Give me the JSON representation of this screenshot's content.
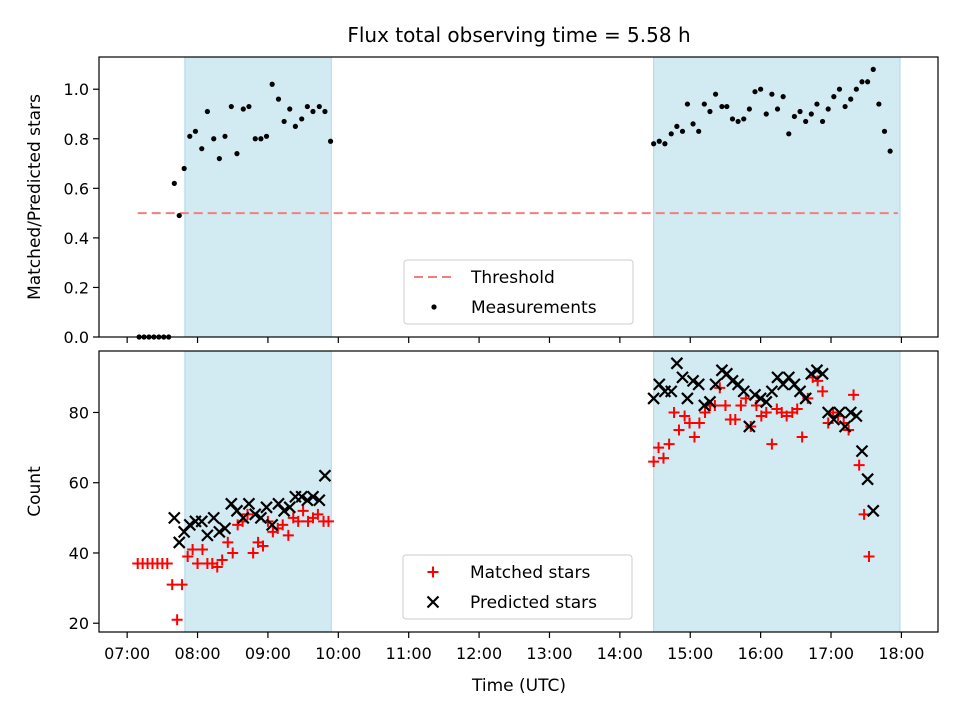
{
  "chart_data": {
    "title": "Flux total observing time = 5.58 h",
    "xlabel": "Time (UTC)",
    "x_ticks": [
      "07:00",
      "08:00",
      "09:00",
      "10:00",
      "11:00",
      "12:00",
      "13:00",
      "14:00",
      "15:00",
      "16:00",
      "17:00",
      "18:00"
    ],
    "x_tick_values": [
      7,
      8,
      9,
      10,
      11,
      12,
      13,
      14,
      15,
      16,
      17,
      18
    ],
    "xlim": [
      6.6,
      18.52
    ],
    "shaded_intervals": [
      [
        7.82,
        9.9
      ],
      [
        14.48,
        17.98
      ]
    ],
    "shade_color": "#add8e6",
    "panels": [
      {
        "type": "scatter",
        "ylabel": "Matched/Predicted stars",
        "ylim": [
          0,
          1.13
        ],
        "y_ticks": [
          "0.0",
          "0.2",
          "0.4",
          "0.6",
          "0.8",
          "1.0"
        ],
        "y_tick_values": [
          0,
          0.2,
          0.4,
          0.6,
          0.8,
          1.0
        ],
        "threshold": {
          "name": "Threshold",
          "value": 0.5,
          "x_range": [
            7.15,
            17.95
          ],
          "color": "#f08080"
        },
        "legend": {
          "position": "lower-center",
          "entries": [
            "Threshold",
            "Measurements"
          ]
        },
        "series": [
          {
            "name": "Measurements",
            "color": "#000000",
            "marker": "dot",
            "points": [
              [
                7.17,
                0.0
              ],
              [
                7.24,
                0.0
              ],
              [
                7.31,
                0.0
              ],
              [
                7.38,
                0.0
              ],
              [
                7.45,
                0.0
              ],
              [
                7.52,
                0.0
              ],
              [
                7.59,
                0.0
              ],
              [
                7.67,
                0.62
              ],
              [
                7.74,
                0.49
              ],
              [
                7.81,
                0.68
              ],
              [
                7.89,
                0.81
              ],
              [
                7.97,
                0.83
              ],
              [
                8.06,
                0.76
              ],
              [
                8.14,
                0.91
              ],
              [
                8.23,
                0.8
              ],
              [
                8.31,
                0.72
              ],
              [
                8.39,
                0.81
              ],
              [
                8.48,
                0.93
              ],
              [
                8.56,
                0.74
              ],
              [
                8.65,
                0.92
              ],
              [
                8.73,
                0.93
              ],
              [
                8.82,
                0.8
              ],
              [
                8.9,
                0.8
              ],
              [
                8.98,
                0.81
              ],
              [
                9.06,
                1.02
              ],
              [
                9.15,
                0.96
              ],
              [
                9.23,
                0.87
              ],
              [
                9.31,
                0.92
              ],
              [
                9.39,
                0.85
              ],
              [
                9.48,
                0.88
              ],
              [
                9.56,
                0.93
              ],
              [
                9.64,
                0.91
              ],
              [
                9.73,
                0.93
              ],
              [
                9.81,
                0.91
              ],
              [
                9.89,
                0.79
              ],
              [
                14.48,
                0.78
              ],
              [
                14.56,
                0.79
              ],
              [
                14.64,
                0.78
              ],
              [
                14.73,
                0.82
              ],
              [
                14.81,
                0.85
              ],
              [
                14.89,
                0.83
              ],
              [
                14.96,
                0.94
              ],
              [
                15.04,
                0.86
              ],
              [
                15.12,
                0.83
              ],
              [
                15.2,
                0.94
              ],
              [
                15.28,
                0.91
              ],
              [
                15.36,
                0.98
              ],
              [
                15.45,
                0.93
              ],
              [
                15.52,
                0.93
              ],
              [
                15.6,
                0.88
              ],
              [
                15.68,
                0.87
              ],
              [
                15.76,
                0.88
              ],
              [
                15.84,
                0.92
              ],
              [
                15.92,
                0.99
              ],
              [
                16.0,
                1.0
              ],
              [
                16.08,
                0.9
              ],
              [
                16.16,
                0.98
              ],
              [
                16.24,
                0.92
              ],
              [
                16.32,
                0.97
              ],
              [
                16.4,
                0.82
              ],
              [
                16.48,
                0.89
              ],
              [
                16.56,
                0.91
              ],
              [
                16.64,
                0.87
              ],
              [
                16.72,
                0.9
              ],
              [
                16.8,
                0.94
              ],
              [
                16.88,
                0.87
              ],
              [
                16.96,
                0.92
              ],
              [
                17.04,
                0.97
              ],
              [
                17.12,
                1.0
              ],
              [
                17.2,
                0.93
              ],
              [
                17.28,
                0.96
              ],
              [
                17.36,
                1.0
              ],
              [
                17.44,
                1.03
              ],
              [
                17.52,
                1.03
              ],
              [
                17.6,
                1.08
              ],
              [
                17.68,
                0.94
              ],
              [
                17.76,
                0.83
              ],
              [
                17.84,
                0.75
              ]
            ]
          }
        ]
      },
      {
        "type": "scatter",
        "ylabel": "Count",
        "ylim": [
          17.5,
          97.5
        ],
        "y_ticks": [
          "20",
          "40",
          "60",
          "80"
        ],
        "y_tick_values": [
          20,
          40,
          60,
          80
        ],
        "legend": {
          "position": "lower-center",
          "entries": [
            "Matched stars",
            "Predicted stars"
          ]
        },
        "series": [
          {
            "name": "Matched stars",
            "color": "#ff0000",
            "marker": "plus",
            "points": [
              [
                7.15,
                37
              ],
              [
                7.22,
                37
              ],
              [
                7.29,
                37
              ],
              [
                7.36,
                37
              ],
              [
                7.43,
                37
              ],
              [
                7.5,
                37
              ],
              [
                7.57,
                37
              ],
              [
                7.64,
                31
              ],
              [
                7.71,
                21
              ],
              [
                7.78,
                31
              ],
              [
                7.86,
                39
              ],
              [
                7.93,
                41
              ],
              [
                8.0,
                37
              ],
              [
                8.07,
                41
              ],
              [
                8.14,
                37
              ],
              [
                8.21,
                37
              ],
              [
                8.28,
                36
              ],
              [
                8.35,
                38
              ],
              [
                8.43,
                43
              ],
              [
                8.5,
                40
              ],
              [
                8.57,
                48
              ],
              [
                8.64,
                49
              ],
              [
                8.71,
                51
              ],
              [
                8.79,
                40
              ],
              [
                8.86,
                43
              ],
              [
                8.93,
                42
              ],
              [
                9.0,
                49
              ],
              [
                9.07,
                46
              ],
              [
                9.14,
                47
              ],
              [
                9.21,
                48
              ],
              [
                9.29,
                45
              ],
              [
                9.36,
                50
              ],
              [
                9.43,
                49
              ],
              [
                9.5,
                52
              ],
              [
                9.57,
                49
              ],
              [
                9.64,
                50
              ],
              [
                9.71,
                51
              ],
              [
                9.79,
                49
              ],
              [
                9.86,
                49
              ],
              [
                14.48,
                66
              ],
              [
                14.55,
                70
              ],
              [
                14.62,
                67
              ],
              [
                14.7,
                71
              ],
              [
                14.77,
                80
              ],
              [
                14.84,
                75
              ],
              [
                14.92,
                79
              ],
              [
                14.99,
                77
              ],
              [
                15.06,
                73
              ],
              [
                15.13,
                77
              ],
              [
                15.21,
                80
              ],
              [
                15.28,
                82
              ],
              [
                15.35,
                82
              ],
              [
                15.42,
                87
              ],
              [
                15.5,
                82
              ],
              [
                15.57,
                78
              ],
              [
                15.64,
                78
              ],
              [
                15.72,
                82
              ],
              [
                15.79,
                84
              ],
              [
                15.86,
                76
              ],
              [
                15.94,
                82
              ],
              [
                16.01,
                79
              ],
              [
                16.08,
                80
              ],
              [
                16.16,
                71
              ],
              [
                16.23,
                81
              ],
              [
                16.3,
                80
              ],
              [
                16.37,
                79
              ],
              [
                16.45,
                80
              ],
              [
                16.52,
                81
              ],
              [
                16.59,
                73
              ],
              [
                16.67,
                84
              ],
              [
                16.74,
                90
              ],
              [
                16.81,
                89
              ],
              [
                16.88,
                86
              ],
              [
                16.96,
                77
              ],
              [
                17.03,
                80
              ],
              [
                17.1,
                79
              ],
              [
                17.18,
                77
              ],
              [
                17.25,
                75
              ],
              [
                17.32,
                85
              ],
              [
                17.4,
                65
              ],
              [
                17.47,
                51
              ],
              [
                17.54,
                39
              ]
            ]
          },
          {
            "name": "Predicted stars",
            "color": "#000000",
            "marker": "x",
            "points": [
              [
                7.67,
                50
              ],
              [
                7.74,
                43
              ],
              [
                7.81,
                46
              ],
              [
                7.89,
                48
              ],
              [
                7.97,
                49
              ],
              [
                8.06,
                49
              ],
              [
                8.14,
                45
              ],
              [
                8.23,
                50
              ],
              [
                8.31,
                46
              ],
              [
                8.39,
                47
              ],
              [
                8.48,
                54
              ],
              [
                8.56,
                52
              ],
              [
                8.65,
                50
              ],
              [
                8.73,
                54
              ],
              [
                8.82,
                51
              ],
              [
                8.9,
                50
              ],
              [
                8.98,
                53
              ],
              [
                9.06,
                48
              ],
              [
                9.15,
                54
              ],
              [
                9.23,
                52
              ],
              [
                9.31,
                53
              ],
              [
                9.39,
                56
              ],
              [
                9.48,
                56
              ],
              [
                9.56,
                55
              ],
              [
                9.64,
                56
              ],
              [
                9.73,
                55
              ],
              [
                9.81,
                62
              ],
              [
                14.48,
                84
              ],
              [
                14.56,
                88
              ],
              [
                14.64,
                86
              ],
              [
                14.73,
                86
              ],
              [
                14.81,
                94
              ],
              [
                14.89,
                90
              ],
              [
                14.96,
                84
              ],
              [
                15.04,
                89
              ],
              [
                15.12,
                88
              ],
              [
                15.2,
                82
              ],
              [
                15.28,
                83
              ],
              [
                15.36,
                88
              ],
              [
                15.45,
                92
              ],
              [
                15.52,
                91
              ],
              [
                15.6,
                89
              ],
              [
                15.68,
                88
              ],
              [
                15.76,
                86
              ],
              [
                15.84,
                76
              ],
              [
                15.92,
                85
              ],
              [
                16.0,
                84
              ],
              [
                16.08,
                83
              ],
              [
                16.16,
                86
              ],
              [
                16.24,
                90
              ],
              [
                16.32,
                88
              ],
              [
                16.4,
                90
              ],
              [
                16.48,
                88
              ],
              [
                16.56,
                86
              ],
              [
                16.64,
                84
              ],
              [
                16.72,
                91
              ],
              [
                16.8,
                92
              ],
              [
                16.88,
                91
              ],
              [
                16.96,
                80
              ],
              [
                17.04,
                78
              ],
              [
                17.12,
                80
              ],
              [
                17.2,
                76
              ],
              [
                17.28,
                80
              ],
              [
                17.36,
                79
              ],
              [
                17.44,
                69
              ],
              [
                17.52,
                61
              ],
              [
                17.6,
                52
              ]
            ]
          }
        ]
      }
    ]
  }
}
